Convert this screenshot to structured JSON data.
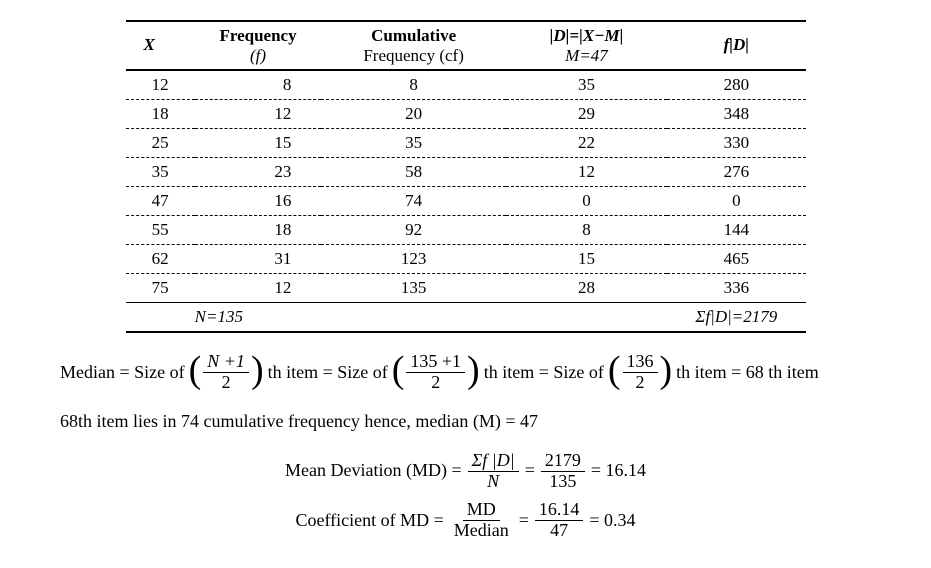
{
  "table": {
    "headers": {
      "x": "X",
      "f_top": "Frequency",
      "f_bot": "(f)",
      "cf_top": "Cumulative",
      "cf_bot": "Frequency (cf)",
      "d_top": "|D|=|X−M|",
      "d_bot": "M=47",
      "fd": "f|D|"
    },
    "rows": [
      {
        "x": "12",
        "f": "8",
        "cf": "8",
        "d": "35",
        "fd": "280"
      },
      {
        "x": "18",
        "f": "12",
        "cf": "20",
        "d": "29",
        "fd": "348"
      },
      {
        "x": "25",
        "f": "15",
        "cf": "35",
        "d": "22",
        "fd": "330"
      },
      {
        "x": "35",
        "f": "23",
        "cf": "58",
        "d": "12",
        "fd": "276"
      },
      {
        "x": "47",
        "f": "16",
        "cf": "74",
        "d": "0",
        "fd": "0"
      },
      {
        "x": "55",
        "f": "18",
        "cf": "92",
        "d": "8",
        "fd": "144"
      },
      {
        "x": "62",
        "f": "31",
        "cf": "123",
        "d": "15",
        "fd": "465"
      },
      {
        "x": "75",
        "f": "12",
        "cf": "135",
        "d": "28",
        "fd": "336"
      }
    ],
    "footer": {
      "n": "N=135",
      "sumfd": "Σf|D|=2179"
    }
  },
  "work": {
    "median_label": "Median = Size of",
    "frac1_num": "N +1",
    "frac1_den": "2",
    "th_item": "th item = Size of",
    "frac2_num": "135 +1",
    "frac2_den": "2",
    "th_item2": "th item = Size of",
    "frac3_num": "136",
    "frac3_den": "2",
    "th_item3": "th item = 68 th item",
    "line2": "68th item lies in 74 cumulative frequency hence, median (M) = 47",
    "md_label": "Mean Deviation (MD) =",
    "md_frac1_num": "Σf |D|",
    "md_frac1_den": "N",
    "eq": "=",
    "md_frac2_num": "2179",
    "md_frac2_den": "135",
    "md_result": "= 16.14",
    "coef_label": "Coefficient of MD =",
    "coef_frac1_num": "MD",
    "coef_frac1_den": "Median",
    "coef_frac2_num": "16.14",
    "coef_frac2_den": "47",
    "coef_result": "= 0.34"
  }
}
